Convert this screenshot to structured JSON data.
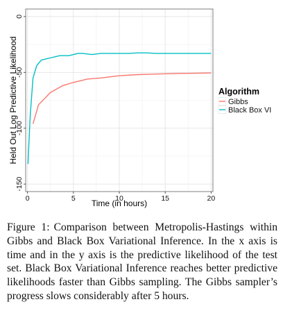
{
  "chart_data": {
    "type": "line",
    "xlabel": "Time (in hours)",
    "ylabel": "Held Out Log Predictive Likelihood",
    "xlim": [
      0,
      20
    ],
    "ylim": [
      -150,
      0
    ],
    "x_ticks": [
      0,
      5,
      10,
      15,
      20
    ],
    "y_ticks": [
      0,
      -50,
      -100,
      -150
    ],
    "x_tick_labels": [
      "0",
      "5",
      "10",
      "15",
      "20"
    ],
    "y_tick_labels": [
      "0",
      "-50",
      "-100",
      "-150"
    ],
    "grid": true,
    "legend_title": "Algorithm",
    "legend_position": "right",
    "series": [
      {
        "name": "Gibbs",
        "color": "#F8766D",
        "x": [
          0.6,
          1.2,
          2.5,
          3.8,
          5.0,
          6.5,
          8.0,
          10.0,
          12.0,
          14.0,
          16.0,
          18.0,
          20.0
        ],
        "y": [
          -96,
          -79,
          -68,
          -62,
          -59,
          -56,
          -55,
          -53,
          -52,
          -51.5,
          -51,
          -50.8,
          -50.5
        ]
      },
      {
        "name": "Black Box VI",
        "color": "#00BFC4",
        "x": [
          0.05,
          0.3,
          0.6,
          1.0,
          1.5,
          2.0,
          2.5,
          3.0,
          3.5,
          4.0,
          4.5,
          5.0,
          5.5,
          6.0,
          7.0,
          8.0,
          9.0,
          10.0,
          11.0,
          12.0,
          13.0,
          14.0,
          15.0,
          16.0,
          17.0,
          18.0,
          19.0,
          20.0
        ],
        "y": [
          -132,
          -88,
          -55,
          -44,
          -39,
          -38,
          -37,
          -36,
          -35,
          -35,
          -35,
          -34,
          -33,
          -33,
          -34,
          -33,
          -33,
          -33,
          -33,
          -32.5,
          -32.5,
          -33,
          -33,
          -33,
          -33,
          -33,
          -33,
          -33
        ]
      }
    ]
  },
  "caption": {
    "label": "Figure 1:",
    "text_html": "Comparison between Metropolis-Hastings within Gibbs and Black Box Variational Inference. In the x axis is time and in the y axis is the predictive likelihood of the test set. Black Box Variational Infer&shy;ence reaches better predictive likelihoods faster than Gibbs sampling. The Gibbs sampler’s progress slows considerably after 5 hours."
  }
}
